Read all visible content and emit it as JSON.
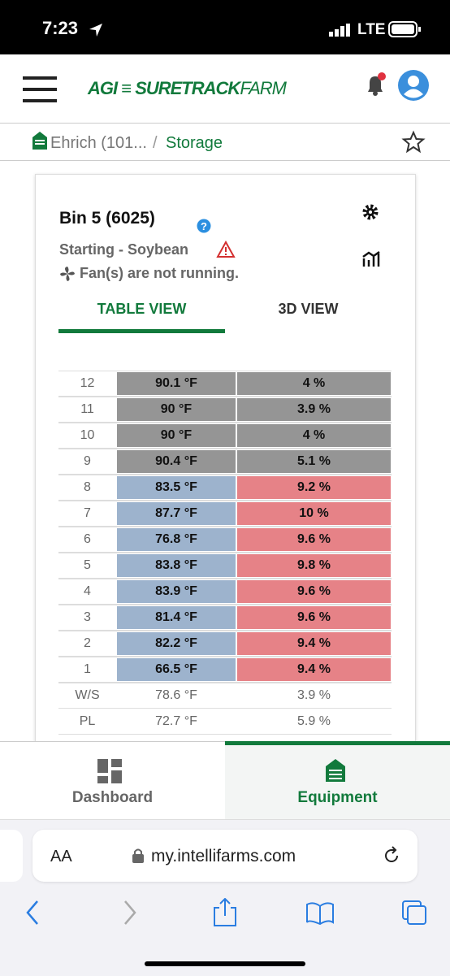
{
  "status_bar": {
    "time": "7:23",
    "network": "LTE"
  },
  "header": {
    "logo_agi": "AGI",
    "logo_brand": "SURETRACK",
    "logo_farm": "FARM"
  },
  "breadcrumb": {
    "site": "Ehrich (101...",
    "separator": "/",
    "page": "Storage"
  },
  "card": {
    "title": "Bin 5 (6025)",
    "status": "Starting - Soybean",
    "fan": "Fan(s) are not running.",
    "tabs": [
      "TABLE VIEW",
      "3D VIEW"
    ],
    "table": {
      "rows": [
        [
          "12",
          "90.1 °F",
          "4 %"
        ],
        [
          "11",
          "90 °F",
          "3.9 %"
        ],
        [
          "10",
          "90 °F",
          "4 %"
        ],
        [
          "9",
          "90.4 °F",
          "5.1 %"
        ],
        [
          "8",
          "83.5 °F",
          "9.2 %"
        ],
        [
          "7",
          "87.7 °F",
          "10 %"
        ],
        [
          "6",
          "76.8 °F",
          "9.6 %"
        ],
        [
          "5",
          "83.8 °F",
          "9.8 %"
        ],
        [
          "4",
          "83.9 °F",
          "9.6 %"
        ],
        [
          "3",
          "81.4 °F",
          "9.6 %"
        ],
        [
          "2",
          "82.2 °F",
          "9.4 %"
        ],
        [
          "1",
          "66.5 °F",
          "9.4 %"
        ]
      ],
      "summary": [
        [
          "W/S",
          "78.6 °F",
          "3.9 %"
        ],
        [
          "PL",
          "72.7 °F",
          "5.9 %"
        ]
      ]
    }
  },
  "nav": {
    "items": [
      "Dashboard",
      "Equipment"
    ]
  },
  "browser": {
    "text_size": "AA",
    "url": "my.intellifarms.com"
  }
}
